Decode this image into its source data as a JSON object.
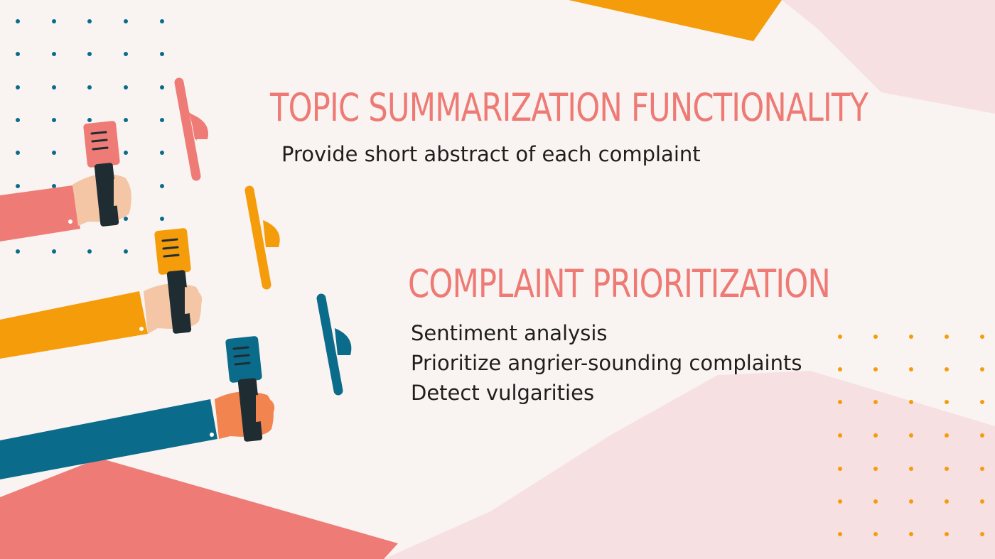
{
  "slide": {
    "sections": [
      {
        "heading": "TOPIC SUMMARIZATION FUNCTIONALITY",
        "items": [
          "Provide short abstract of each complaint"
        ]
      },
      {
        "heading": "COMPLAINT PRIORITIZATION",
        "items": [
          "Sentiment analysis",
          "Prioritize angrier-sounding complaints",
          "Detect vulgarities"
        ]
      }
    ]
  },
  "colors": {
    "background": "#f9f4f1",
    "heading": "#ee7a75",
    "coral": "#ef7b76",
    "orange": "#f59c0a",
    "teal": "#0b6b8a",
    "blush": "#f7e0e2",
    "skin": "#f5c6a5"
  },
  "illustration": {
    "microphones": [
      "coral-microphone-icon",
      "orange-microphone-icon",
      "teal-microphone-icon"
    ],
    "speakers": [
      "coral-loudspeaker-icon",
      "orange-loudspeaker-icon",
      "teal-loudspeaker-icon"
    ]
  }
}
